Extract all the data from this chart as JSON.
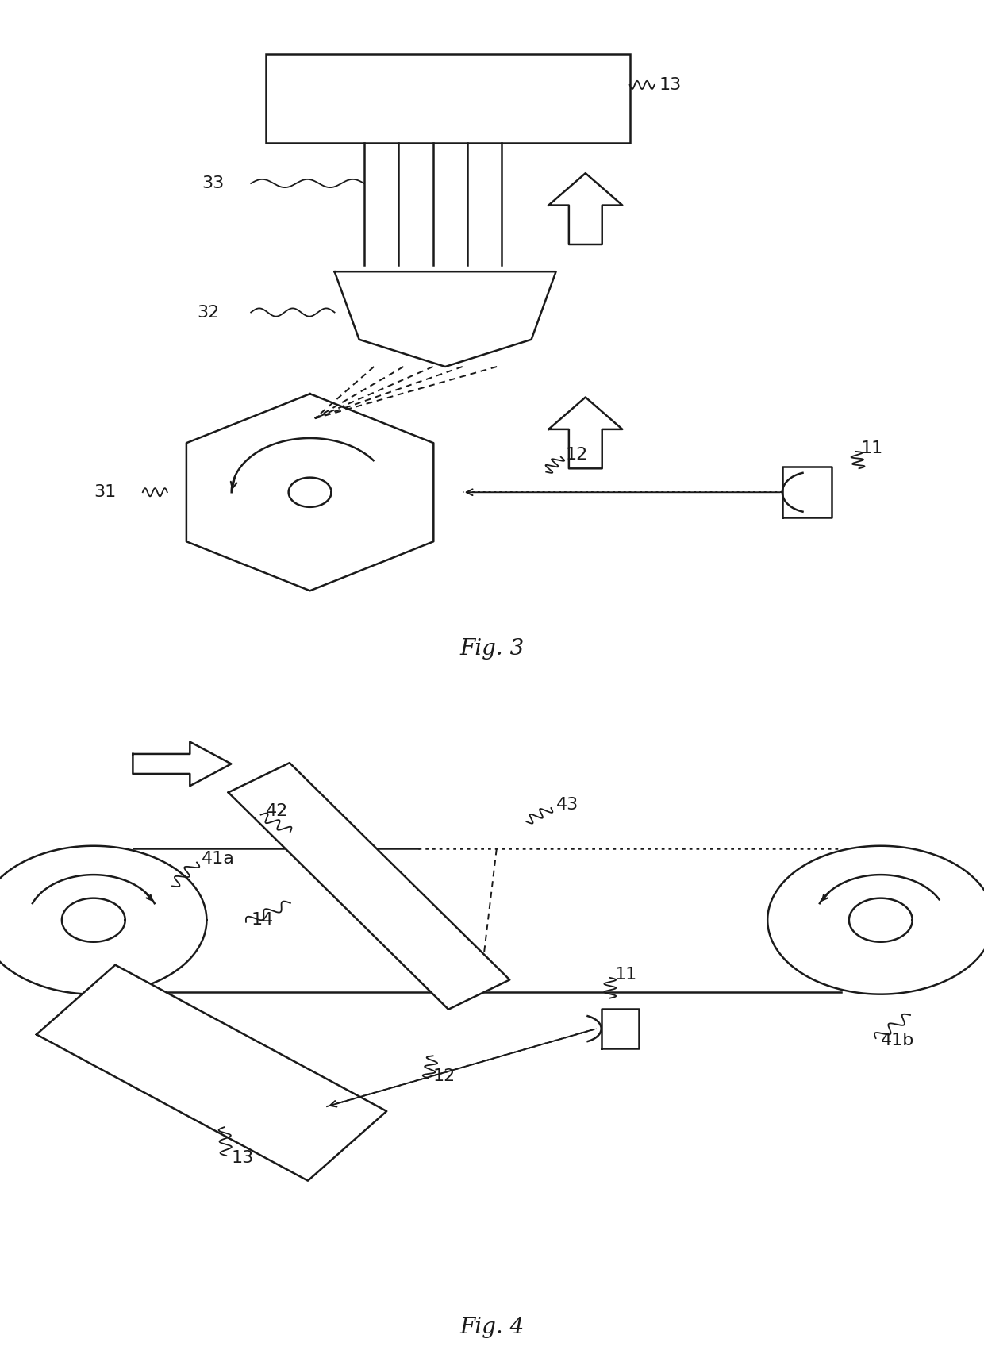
{
  "lc": "#1a1a1a",
  "lw": 1.8,
  "fig3_title": "Fig. 3",
  "fig4_title": "Fig. 4",
  "bg": "#ffffff"
}
